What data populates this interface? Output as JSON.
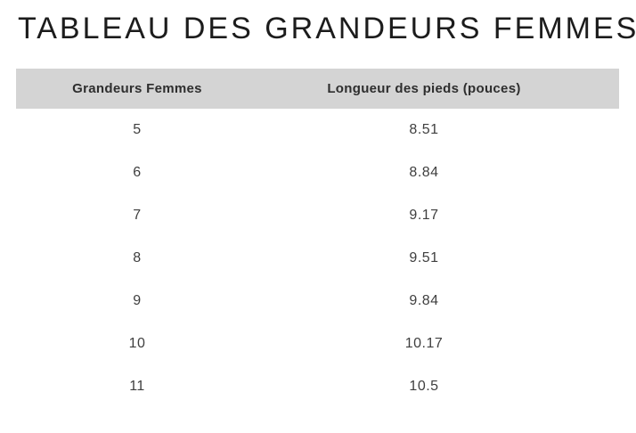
{
  "page": {
    "title": "TABLEAU DES GRANDEURS FEMMES"
  },
  "table": {
    "headers": [
      "Grandeurs Femmes",
      "Longueur des pieds (pouces)"
    ],
    "rows": [
      [
        "5",
        "8.51"
      ],
      [
        "6",
        "8.84"
      ],
      [
        "7",
        "9.17"
      ],
      [
        "8",
        "9.51"
      ],
      [
        "9",
        "9.84"
      ],
      [
        "10",
        "10.17"
      ],
      [
        "11",
        "10.5"
      ]
    ]
  },
  "colors": {
    "page_bg": "#ffffff",
    "header_bar_bg": "#d4d4d4",
    "title_text": "#1c1c1c",
    "header_text": "#2e2e2e",
    "cell_text": "#3f3f3f"
  },
  "chart_data": {
    "type": "table",
    "title": "TABLEAU DES GRANDEURS FEMMES",
    "columns": [
      "Grandeurs Femmes",
      "Longueur des pieds (pouces)"
    ],
    "rows": [
      {
        "grandeur": 5,
        "longueur_pouces": 8.51
      },
      {
        "grandeur": 6,
        "longueur_pouces": 8.84
      },
      {
        "grandeur": 7,
        "longueur_pouces": 9.17
      },
      {
        "grandeur": 8,
        "longueur_pouces": 9.51
      },
      {
        "grandeur": 9,
        "longueur_pouces": 9.84
      },
      {
        "grandeur": 10,
        "longueur_pouces": 10.17
      },
      {
        "grandeur": 11,
        "longueur_pouces": 10.5
      }
    ],
    "layout": {
      "header_background": "#d4d4d4",
      "grid": "none",
      "column_alignment": "center"
    }
  }
}
